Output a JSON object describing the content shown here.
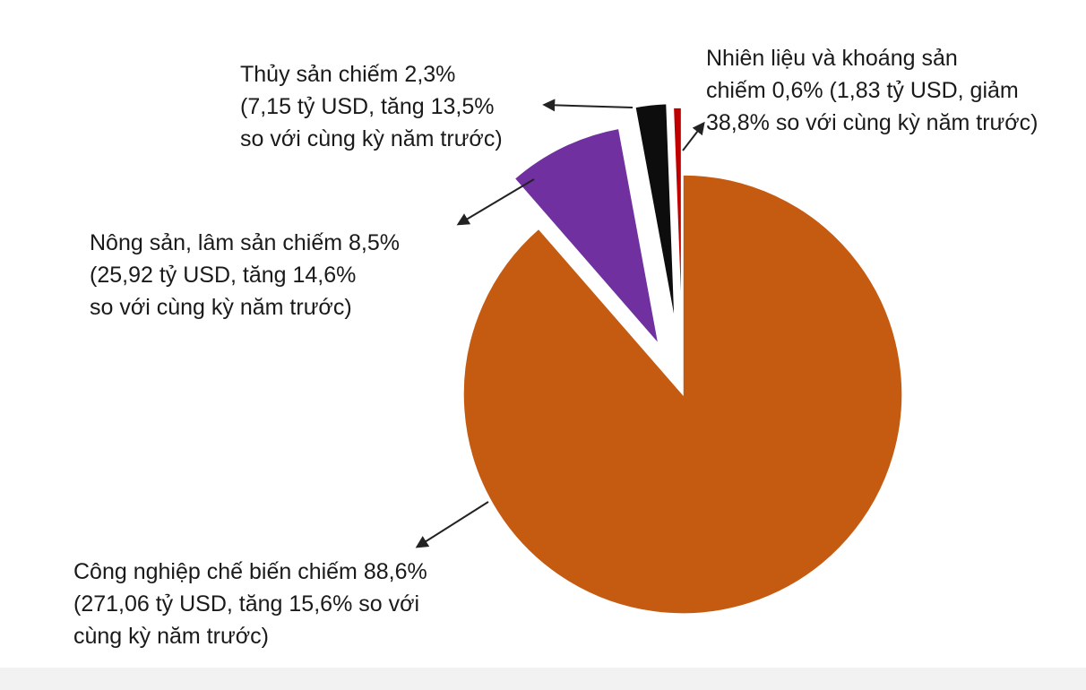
{
  "chart_data": {
    "type": "pie",
    "slices": [
      {
        "key": "cong-nghiep",
        "value": 88.6,
        "color": "#c55a11",
        "exploded": false,
        "label_lines": [
          "Công nghiệp chế biến chiếm 88,6%",
          "(271,06 tỷ USD, tăng 15,6% so với",
          "cùng kỳ năm trước)"
        ]
      },
      {
        "key": "nong-san",
        "value": 8.5,
        "color": "#7030a0",
        "exploded": true,
        "label_lines": [
          "Nông sản, lâm sản chiếm 8,5%",
          "(25,92 tỷ USD, tăng 14,6%",
          "so với cùng kỳ năm trước)"
        ]
      },
      {
        "key": "thuy-san",
        "value": 2.3,
        "color": "#0d0d0d",
        "exploded": true,
        "label_lines": [
          "Thủy sản chiếm 2,3%",
          "(7,15 tỷ USD, tăng 13,5%",
          "so với cùng kỳ năm trước)"
        ]
      },
      {
        "key": "nhien-lieu",
        "value": 0.6,
        "color": "#c00000",
        "exploded": true,
        "label_lines": [
          "Nhiên liệu và khoáng sản",
          "chiếm 0,6% (1,83 tỷ USD, giảm",
          "38,8% so với cùng kỳ năm trước)"
        ]
      }
    ],
    "leader_color": "#222222"
  }
}
